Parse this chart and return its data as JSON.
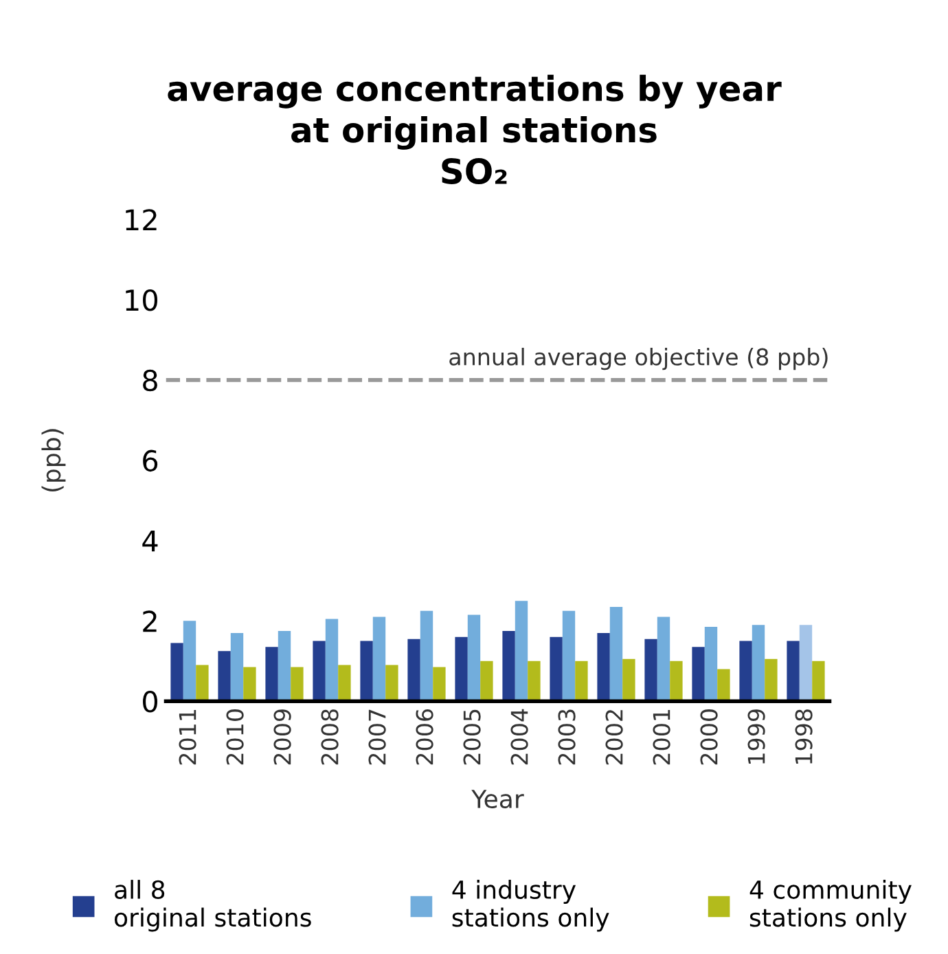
{
  "chart_data": {
    "type": "bar",
    "title": "average concentrations by year\nat original stations\nSO₂",
    "xlabel": "Year",
    "ylabel": "(ppb)",
    "categories": [
      "2011",
      "2010",
      "2009",
      "2008",
      "2007",
      "2006",
      "2005",
      "2004",
      "2003",
      "2002",
      "2001",
      "2000",
      "1999",
      "1998"
    ],
    "series": [
      {
        "name": "all 8\noriginal stations",
        "color": "#243f8f",
        "values": [
          1.45,
          1.25,
          1.35,
          1.5,
          1.5,
          1.55,
          1.6,
          1.75,
          1.6,
          1.7,
          1.55,
          1.35,
          1.5,
          1.5
        ]
      },
      {
        "name": "4 industry\nstations only",
        "color": "#72addc",
        "colors": [
          "#72addc",
          "#72addc",
          "#72addc",
          "#72addc",
          "#72addc",
          "#72addc",
          "#72addc",
          "#72addc",
          "#72addc",
          "#72addc",
          "#72addc",
          "#72addc",
          "#72addc",
          "#a4c4e8"
        ],
        "values": [
          2.0,
          1.7,
          1.75,
          2.05,
          2.1,
          2.25,
          2.15,
          2.5,
          2.25,
          2.35,
          2.1,
          1.85,
          1.9,
          1.9
        ]
      },
      {
        "name": "4 community\nstations only",
        "color": "#b3bb1c",
        "values": [
          0.9,
          0.85,
          0.85,
          0.9,
          0.9,
          0.85,
          1.0,
          1.0,
          1.0,
          1.05,
          1.0,
          0.8,
          1.05,
          1.0
        ]
      }
    ],
    "ylim": [
      0,
      12
    ],
    "yticks": [
      0,
      2,
      4,
      6,
      8,
      10,
      12
    ],
    "grid": false,
    "legend": "bottom",
    "ref_lines": [
      {
        "axis": "y",
        "value": 8,
        "label": "annual average objective (8 ppb)",
        "color": "#999999",
        "line_style": "dashed"
      }
    ]
  }
}
